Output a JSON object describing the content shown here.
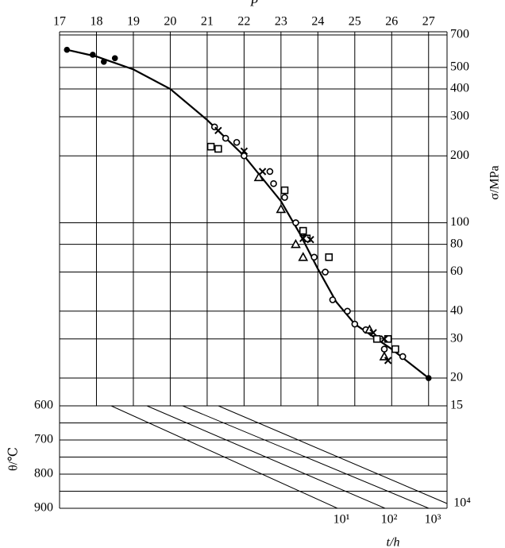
{
  "chart_data": {
    "type": "scatter",
    "x_label": "P",
    "y_label": "σ/MPa",
    "xlim": [
      17,
      27.5
    ],
    "xticks": [
      17,
      18,
      19,
      20,
      21,
      22,
      23,
      24,
      25,
      26,
      27
    ],
    "ylim": [
      15,
      700
    ],
    "yticks": [
      15,
      20,
      30,
      40,
      60,
      80,
      100,
      200,
      300,
      400,
      500,
      700
    ],
    "log_y": true,
    "grid": true,
    "line": {
      "color": "#000000",
      "x": [
        17.2,
        18,
        19,
        20,
        21,
        22,
        23,
        23.5,
        24,
        24.5,
        25,
        26,
        27
      ],
      "y": [
        600,
        560,
        490,
        400,
        290,
        200,
        125,
        90,
        62,
        44,
        35,
        27,
        20
      ]
    },
    "series": [
      {
        "marker": "circle",
        "color": "#000000",
        "x": [
          21.2,
          21.5,
          21.8,
          22.0,
          22.7,
          22.8,
          23.1,
          23.4,
          23.6,
          23.9,
          24.2,
          24.4,
          24.8,
          25.0,
          25.3,
          25.8,
          26.3
        ],
        "values": [
          270,
          240,
          230,
          200,
          170,
          150,
          130,
          100,
          90,
          70,
          60,
          45,
          40,
          35,
          33,
          27,
          25
        ]
      },
      {
        "marker": "square",
        "color": "#000000",
        "x": [
          21.1,
          21.3,
          23.1,
          23.6,
          23.7,
          24.3,
          25.6,
          25.9,
          26.1
        ],
        "values": [
          220,
          215,
          140,
          92,
          85,
          70,
          30,
          30,
          27
        ]
      },
      {
        "marker": "triangle",
        "color": "#000000",
        "x": [
          22.4,
          23.0,
          23.4,
          23.6,
          25.4,
          25.8
        ],
        "values": [
          160,
          115,
          80,
          70,
          33,
          25
        ]
      },
      {
        "marker": "cross",
        "color": "#000000",
        "x": [
          21.3,
          22.0,
          22.5,
          23.6,
          23.8,
          25.5,
          25.8,
          25.9
        ],
        "values": [
          260,
          210,
          170,
          85,
          84,
          32,
          30,
          24
        ]
      },
      {
        "marker": "dot",
        "color": "#000000",
        "x": [
          17.2,
          17.9,
          18.2,
          18.5,
          27.0
        ],
        "values": [
          600,
          570,
          530,
          550,
          20
        ]
      }
    ],
    "nomograph": {
      "theta_label": "θ/℃",
      "theta_lim": [
        600,
        900
      ],
      "theta_ticks": [
        600,
        700,
        800,
        900
      ],
      "t_label": "t/h",
      "t_ticks": [
        {
          "value": 10,
          "label": "10¹"
        },
        {
          "value": 100,
          "label": "10²"
        },
        {
          "value": 1000,
          "label": "10³"
        },
        {
          "value": 10000,
          "label": "10⁴"
        }
      ]
    }
  }
}
